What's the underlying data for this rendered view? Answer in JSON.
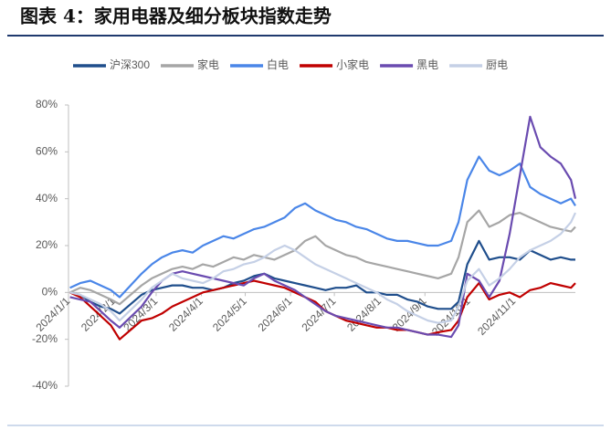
{
  "chart_data": {
    "type": "line",
    "title": "图表 4：家用电器及细分板块指数走势",
    "x": [
      "2024/1/2",
      "2024/1/9",
      "2024/1/16",
      "2024/1/23",
      "2024/1/30",
      "2024/2/5",
      "2024/2/20",
      "2024/2/27",
      "2024/3/5",
      "2024/3/12",
      "2024/3/19",
      "2024/3/26",
      "2024/4/2",
      "2024/4/9",
      "2024/4/16",
      "2024/4/23",
      "2024/4/30",
      "2024/5/7",
      "2024/5/14",
      "2024/5/21",
      "2024/5/28",
      "2024/6/4",
      "2024/6/11",
      "2024/6/18",
      "2024/6/25",
      "2024/7/2",
      "2024/7/9",
      "2024/7/16",
      "2024/7/23",
      "2024/7/30",
      "2024/8/6",
      "2024/8/13",
      "2024/8/20",
      "2024/8/27",
      "2024/9/3",
      "2024/9/10",
      "2024/9/19",
      "2024/9/24",
      "2024/9/30",
      "2024/10/8",
      "2024/10/15",
      "2024/10/22",
      "2024/10/29",
      "2024/11/5",
      "2024/11/12",
      "2024/11/19",
      "2024/11/26",
      "2024/12/3",
      "2024/12/10",
      "2024/12/13"
    ],
    "series": [
      {
        "name": "沪深300",
        "color": "#1f4e8c",
        "values": [
          0,
          -1,
          -4,
          -6,
          -7,
          -9,
          -1,
          1,
          2,
          3,
          3,
          2,
          2,
          1,
          2,
          4,
          5,
          7,
          8,
          6,
          5,
          4,
          3,
          2,
          1,
          2,
          2,
          3,
          0,
          0,
          -1,
          -1,
          -3,
          -4,
          -6,
          -7,
          -7,
          -4,
          12,
          22,
          14,
          15,
          15,
          14,
          18,
          16,
          14,
          15,
          14,
          14
        ]
      },
      {
        "name": "家电",
        "color": "#a6a6a6",
        "values": [
          0,
          2,
          1,
          -1,
          -3,
          -5,
          3,
          6,
          8,
          10,
          11,
          10,
          12,
          11,
          13,
          15,
          14,
          16,
          15,
          14,
          16,
          18,
          22,
          24,
          20,
          18,
          16,
          15,
          13,
          12,
          11,
          10,
          9,
          8,
          7,
          6,
          8,
          15,
          30,
          35,
          28,
          30,
          33,
          34,
          32,
          30,
          28,
          27,
          26,
          28
        ]
      },
      {
        "name": "白电",
        "color": "#4a86e8",
        "values": [
          2,
          4,
          5,
          3,
          1,
          -2,
          8,
          12,
          15,
          17,
          18,
          17,
          20,
          22,
          24,
          23,
          25,
          27,
          28,
          30,
          32,
          36,
          38,
          35,
          33,
          31,
          30,
          28,
          27,
          25,
          23,
          22,
          22,
          21,
          20,
          20,
          22,
          30,
          48,
          58,
          52,
          50,
          52,
          55,
          45,
          42,
          40,
          38,
          40,
          37
        ]
      },
      {
        "name": "小家电",
        "color": "#c00000",
        "values": [
          0,
          -2,
          -6,
          -10,
          -14,
          -20,
          -12,
          -11,
          -9,
          -6,
          -4,
          -2,
          0,
          1,
          2,
          3,
          4,
          5,
          4,
          3,
          2,
          0,
          -2,
          -4,
          -8,
          -10,
          -12,
          -13,
          -14,
          -15,
          -15,
          -16,
          -16,
          -17,
          -18,
          -17,
          -16,
          -12,
          -2,
          4,
          -3,
          -1,
          0,
          -2,
          1,
          2,
          4,
          3,
          2,
          4
        ]
      },
      {
        "name": "黑电",
        "color": "#6a4bb0",
        "values": [
          -2,
          -3,
          -4,
          -8,
          -12,
          -15,
          -6,
          0,
          5,
          8,
          9,
          8,
          7,
          6,
          5,
          4,
          3,
          6,
          8,
          5,
          3,
          1,
          -2,
          -5,
          -8,
          -10,
          -11,
          -12,
          -13,
          -14,
          -15,
          -15,
          -16,
          -17,
          -18,
          -18,
          -19,
          -14,
          8,
          5,
          -2,
          5,
          25,
          50,
          75,
          62,
          58,
          55,
          48,
          40
        ]
      },
      {
        "name": "厨电",
        "color": "#c5d0e6",
        "values": [
          0,
          -1,
          -3,
          -5,
          -8,
          -12,
          -3,
          2,
          5,
          8,
          6,
          5,
          4,
          6,
          9,
          10,
          12,
          13,
          15,
          18,
          20,
          18,
          15,
          12,
          10,
          8,
          6,
          4,
          2,
          0,
          -3,
          -5,
          -8,
          -10,
          -12,
          -13,
          -12,
          -6,
          5,
          10,
          3,
          6,
          10,
          15,
          18,
          20,
          22,
          25,
          30,
          34
        ]
      }
    ],
    "xlim": [
      "2024/1/1",
      "2024/12/13"
    ],
    "xticks": [
      "2024/1/1",
      "2024/2/1",
      "2024/3/1",
      "2024/4/1",
      "2024/5/1",
      "2024/6/1",
      "2024/7/1",
      "2024/8/1",
      "2024/9/1",
      "2024/10/1",
      "2024/11/1"
    ],
    "ylim": [
      -40,
      80
    ],
    "yticks": [
      {
        "value": -40,
        "label": "-40%"
      },
      {
        "value": -20,
        "label": "-20%"
      },
      {
        "value": 0,
        "label": "0%"
      },
      {
        "value": 20,
        "label": "20%"
      },
      {
        "value": 40,
        "label": "40%"
      },
      {
        "value": 60,
        "label": "60%"
      },
      {
        "value": 80,
        "label": "80%"
      }
    ]
  }
}
